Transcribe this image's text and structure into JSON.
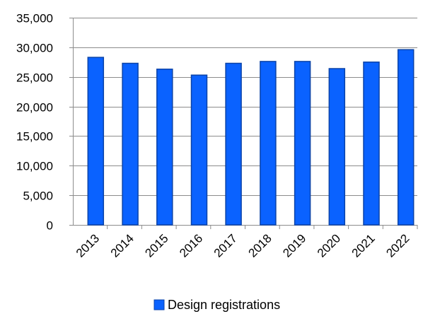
{
  "chart_data": {
    "type": "bar",
    "categories": [
      "2013",
      "2014",
      "2015",
      "2016",
      "2017",
      "2018",
      "2019",
      "2020",
      "2021",
      "2022"
    ],
    "series": [
      {
        "name": "Design registrations",
        "values": [
          28300,
          27300,
          26300,
          25300,
          27300,
          27600,
          27600,
          26400,
          27500,
          29600
        ],
        "color": "#0a62ff",
        "edge_color": "#0b43a8"
      }
    ],
    "title": "",
    "xlabel": "",
    "ylabel": "",
    "ylim": [
      0,
      35000
    ],
    "yticks": [
      0,
      5000,
      10000,
      15000,
      20000,
      25000,
      30000,
      35000
    ],
    "ytick_labels": [
      "0",
      "5,000",
      "10,000",
      "15,000",
      "20,000",
      "25,000",
      "30,000",
      "35,000"
    ],
    "grid": true,
    "legend_position": "bottom",
    "legend": [
      {
        "label": "Design registrations",
        "color": "#0a62ff"
      }
    ]
  }
}
